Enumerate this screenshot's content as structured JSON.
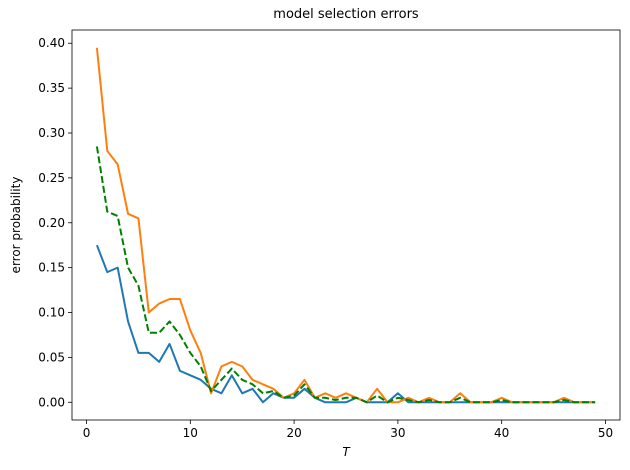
{
  "chart_data": {
    "type": "line",
    "title": "model selection errors",
    "x_label": "T",
    "y_label": "error probability",
    "x": [
      1,
      2,
      3,
      4,
      5,
      6,
      7,
      8,
      9,
      10,
      11,
      12,
      13,
      14,
      15,
      16,
      17,
      18,
      19,
      20,
      21,
      22,
      23,
      24,
      25,
      26,
      27,
      28,
      29,
      30,
      31,
      32,
      33,
      34,
      35,
      36,
      37,
      38,
      39,
      40,
      41,
      42,
      43,
      44,
      45,
      46,
      47,
      48,
      49
    ],
    "series": [
      {
        "color": "#1f77b4",
        "linestyle": "solid",
        "values": [
          0.175,
          0.145,
          0.15,
          0.09,
          0.055,
          0.055,
          0.045,
          0.065,
          0.035,
          0.03,
          0.025,
          0.015,
          0.01,
          0.03,
          0.01,
          0.015,
          0.0,
          0.01,
          0.005,
          0.005,
          0.015,
          0.005,
          0.0,
          0.0,
          0.0,
          0.005,
          0.0,
          0.0,
          0.0,
          0.01,
          0.0,
          0.0,
          0.0,
          0.0,
          0.0,
          0.0,
          0.0,
          0.0,
          0.0,
          0.0,
          0.0,
          0.0,
          0.0,
          0.0,
          0.0,
          0.0,
          0.0,
          0.0,
          0.0
        ]
      },
      {
        "color": "#ff7f0e",
        "linestyle": "solid",
        "values": [
          0.395,
          0.28,
          0.265,
          0.21,
          0.205,
          0.1,
          0.11,
          0.115,
          0.115,
          0.08,
          0.055,
          0.01,
          0.04,
          0.045,
          0.04,
          0.025,
          0.02,
          0.015,
          0.005,
          0.01,
          0.025,
          0.005,
          0.01,
          0.005,
          0.01,
          0.005,
          0.0,
          0.015,
          0.0,
          0.0,
          0.005,
          0.0,
          0.005,
          0.0,
          0.0,
          0.01,
          0.0,
          0.0,
          0.0,
          0.005,
          0.0,
          0.0,
          0.0,
          0.0,
          0.0,
          0.005,
          0.0,
          0.0,
          0.0
        ]
      },
      {
        "color": "#008000",
        "linestyle": "dashed",
        "values": [
          0.285,
          0.2125,
          0.2075,
          0.15,
          0.13,
          0.0775,
          0.0775,
          0.09,
          0.075,
          0.055,
          0.04,
          0.0125,
          0.025,
          0.0375,
          0.025,
          0.02,
          0.01,
          0.0125,
          0.005,
          0.0075,
          0.02,
          0.005,
          0.005,
          0.0025,
          0.005,
          0.005,
          0.0,
          0.0075,
          0.0,
          0.005,
          0.0025,
          0.0,
          0.0025,
          0.0,
          0.0,
          0.005,
          0.0,
          0.0,
          0.0,
          0.0025,
          0.0,
          0.0,
          0.0,
          0.0,
          0.0,
          0.0025,
          0.0,
          0.0,
          0.0
        ]
      }
    ],
    "xlim": [
      -1.4,
      51.4
    ],
    "ylim": [
      -0.01975,
      0.41475
    ],
    "xticks": [
      0,
      10,
      20,
      30,
      40,
      50
    ],
    "yticks": [
      {
        "value": 0,
        "label": "0.00"
      },
      {
        "value": 0.05,
        "label": "0.05"
      },
      {
        "value": 0.1,
        "label": "0.10"
      },
      {
        "value": 0.15,
        "label": "0.15"
      },
      {
        "value": 0.2,
        "label": "0.20"
      },
      {
        "value": 0.25,
        "label": "0.25"
      },
      {
        "value": 0.3,
        "label": "0.30"
      },
      {
        "value": 0.35,
        "label": "0.35"
      },
      {
        "value": 0.4,
        "label": "0.40"
      }
    ],
    "grid": false
  }
}
